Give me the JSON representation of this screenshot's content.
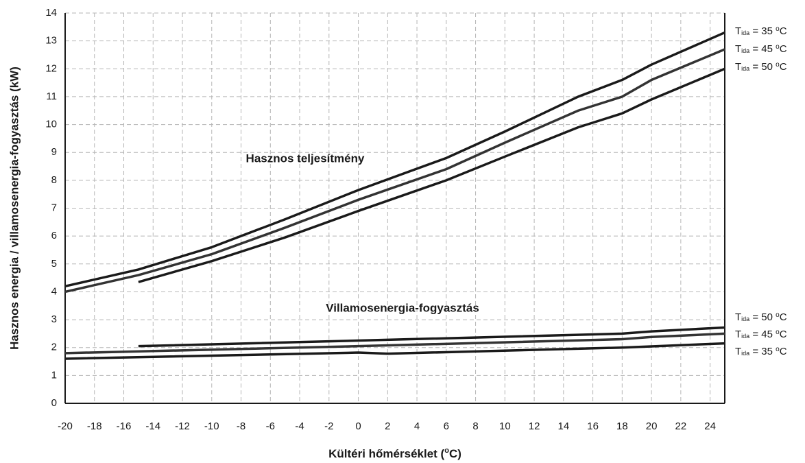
{
  "chart_data": {
    "type": "line",
    "ylabel": "Hasznos energia / villamosenergia-fogyasztás (kW)",
    "xlabel": [
      "Kültéri hőmérséklet (",
      "o",
      "C)"
    ],
    "annotations": [
      "Hasznos teljesítmény",
      "Villamosenergia-fogyasztás"
    ],
    "xlim": [
      -20,
      25
    ],
    "ylim": [
      0,
      14
    ],
    "xticks": [
      -20,
      -18,
      -16,
      -14,
      -12,
      -10,
      -8,
      -6,
      -4,
      -2,
      0,
      2,
      4,
      6,
      8,
      10,
      12,
      14,
      16,
      18,
      20,
      22,
      24
    ],
    "yticks": [
      0,
      1,
      2,
      3,
      4,
      5,
      6,
      7,
      8,
      9,
      10,
      11,
      12,
      13,
      14
    ],
    "grid": true,
    "series": [
      {
        "label": [
          "T",
          "ida",
          " = 35 ",
          "o",
          "C"
        ],
        "color": "#1a1a1a",
        "x": [
          -20,
          -15,
          -10,
          -5,
          0,
          6,
          10,
          15,
          18,
          20,
          25
        ],
        "values": [
          4.2,
          4.8,
          5.6,
          6.6,
          7.65,
          8.8,
          9.75,
          11.0,
          11.6,
          12.15,
          13.3
        ]
      },
      {
        "label": [
          "T",
          "ida",
          " = 45 ",
          "o",
          "C"
        ],
        "color": "#333333",
        "x": [
          -20,
          -15,
          -10,
          -5,
          0,
          6,
          10,
          15,
          18,
          20,
          25
        ],
        "values": [
          4.0,
          4.6,
          5.35,
          6.3,
          7.3,
          8.4,
          9.35,
          10.5,
          11.0,
          11.6,
          12.7
        ]
      },
      {
        "label": [
          "T",
          "ida",
          " = 50 ",
          "o",
          "C"
        ],
        "color": "#1a1a1a",
        "x": [
          -15,
          -10,
          -5,
          0,
          6,
          10,
          15,
          18,
          20,
          25
        ],
        "values": [
          4.35,
          5.1,
          5.95,
          6.9,
          8.0,
          8.85,
          9.9,
          10.4,
          10.9,
          12.0
        ]
      },
      {
        "label": [
          "T",
          "ida",
          " = 50 ",
          "o",
          "C"
        ],
        "color": "#1a1a1a",
        "x": [
          -15,
          0,
          18,
          20,
          25
        ],
        "values": [
          2.05,
          2.25,
          2.5,
          2.58,
          2.72
        ]
      },
      {
        "label": [
          "T",
          "ida",
          " = 45 ",
          "o",
          "C"
        ],
        "color": "#333333",
        "x": [
          -20,
          0,
          18,
          20,
          25
        ],
        "values": [
          1.8,
          2.05,
          2.3,
          2.38,
          2.5
        ]
      },
      {
        "label": [
          "T",
          "ida",
          " = 35 ",
          "o",
          "C"
        ],
        "color": "#1a1a1a",
        "x": [
          -20,
          0,
          2,
          18,
          25
        ],
        "values": [
          1.6,
          1.82,
          1.78,
          2.0,
          2.15
        ]
      }
    ]
  }
}
